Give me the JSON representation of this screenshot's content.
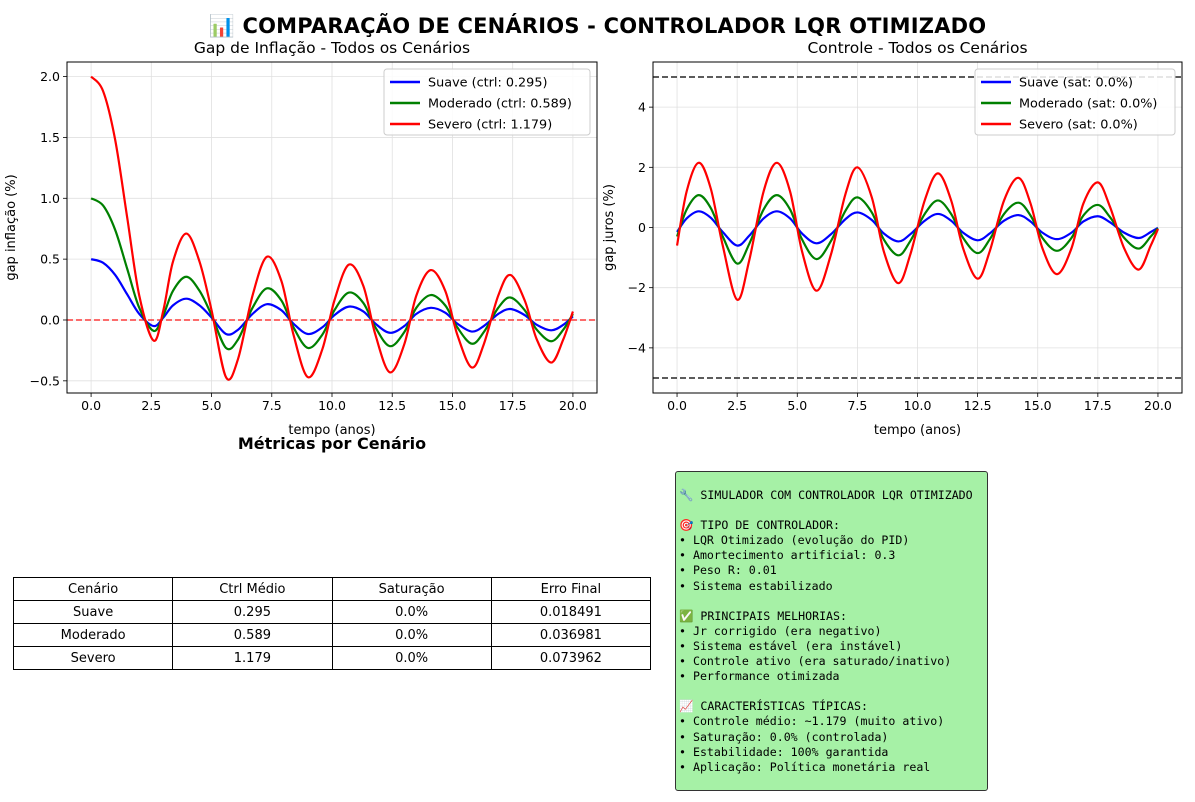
{
  "suptitle": "📊 COMPARAÇÃO DE CENÁRIOS - CONTROLADOR LQR OTIMIZADO",
  "chart_data": [
    {
      "type": "line",
      "title": "Gap de Inflação - Todos os Cenários",
      "xlabel": "tempo (anos)",
      "ylabel": "gap inflação (%)",
      "xlim": [
        -1,
        21
      ],
      "ylim": [
        -0.6,
        2.12
      ],
      "xticks": [
        "0.0",
        "2.5",
        "5.0",
        "7.5",
        "10.0",
        "12.5",
        "15.0",
        "17.5",
        "20.0"
      ],
      "yticks": [
        "−0.5",
        "0.0",
        "0.5",
        "1.0",
        "1.5",
        "2.0"
      ],
      "grid": true,
      "legend_position": "top-right",
      "reference_lines": [
        {
          "y": 0,
          "color": "#ff0000",
          "style": "dashed"
        }
      ],
      "series": [
        {
          "name": "Suave (ctrl: 0.295)",
          "color": "#0000ff",
          "amplitude": 0.5,
          "points": [
            [
              0,
              0.5
            ],
            [
              0.5,
              0.47
            ],
            [
              1,
              0.37
            ],
            [
              1.5,
              0.21
            ],
            [
              2,
              0.05
            ],
            [
              2.6,
              -0.05
            ],
            [
              3,
              0.02
            ],
            [
              3.4,
              0.12
            ],
            [
              3.95,
              0.175
            ],
            [
              4.5,
              0.12
            ],
            [
              5,
              0.02
            ],
            [
              5.6,
              -0.115
            ],
            [
              6.1,
              -0.08
            ],
            [
              6.7,
              0.05
            ],
            [
              7.3,
              0.13
            ],
            [
              7.9,
              0.08
            ],
            [
              8.4,
              -0.03
            ],
            [
              9,
              -0.115
            ],
            [
              9.6,
              -0.06
            ],
            [
              10.1,
              0.04
            ],
            [
              10.7,
              0.11
            ],
            [
              11.3,
              0.07
            ],
            [
              11.8,
              -0.03
            ],
            [
              12.4,
              -0.105
            ],
            [
              13,
              -0.05
            ],
            [
              13.5,
              0.05
            ],
            [
              14.1,
              0.1
            ],
            [
              14.7,
              0.06
            ],
            [
              15.2,
              -0.03
            ],
            [
              15.8,
              -0.095
            ],
            [
              16.3,
              -0.05
            ],
            [
              16.9,
              0.05
            ],
            [
              17.4,
              0.09
            ],
            [
              18,
              0.04
            ],
            [
              18.5,
              -0.04
            ],
            [
              19.1,
              -0.085
            ],
            [
              19.6,
              -0.04
            ],
            [
              20,
              0.03
            ]
          ]
        },
        {
          "name": "Moderado (ctrl: 0.589)",
          "color": "#008000",
          "amplitude": 1.0,
          "points": [
            [
              0,
              1.0
            ],
            [
              0.5,
              0.94
            ],
            [
              1,
              0.74
            ],
            [
              1.5,
              0.42
            ],
            [
              2,
              0.1
            ],
            [
              2.6,
              -0.09
            ],
            [
              3,
              0.04
            ],
            [
              3.4,
              0.24
            ],
            [
              3.95,
              0.355
            ],
            [
              4.5,
              0.24
            ],
            [
              5,
              0.04
            ],
            [
              5.6,
              -0.23
            ],
            [
              6.1,
              -0.16
            ],
            [
              6.7,
              0.1
            ],
            [
              7.3,
              0.26
            ],
            [
              7.9,
              0.16
            ],
            [
              8.4,
              -0.06
            ],
            [
              9,
              -0.23
            ],
            [
              9.6,
              -0.12
            ],
            [
              10.1,
              0.08
            ],
            [
              10.7,
              0.225
            ],
            [
              11.3,
              0.14
            ],
            [
              11.8,
              -0.06
            ],
            [
              12.4,
              -0.215
            ],
            [
              13,
              -0.1
            ],
            [
              13.5,
              0.1
            ],
            [
              14.1,
              0.205
            ],
            [
              14.7,
              0.12
            ],
            [
              15.2,
              -0.06
            ],
            [
              15.8,
              -0.195
            ],
            [
              16.3,
              -0.1
            ],
            [
              16.9,
              0.1
            ],
            [
              17.4,
              0.185
            ],
            [
              18,
              0.08
            ],
            [
              18.5,
              -0.08
            ],
            [
              19.1,
              -0.175
            ],
            [
              19.6,
              -0.08
            ],
            [
              20,
              0.05
            ]
          ]
        },
        {
          "name": "Severo (ctrl: 1.179)",
          "color": "#ff0000",
          "amplitude": 2.0,
          "points": [
            [
              0,
              2.0
            ],
            [
              0.5,
              1.88
            ],
            [
              1,
              1.48
            ],
            [
              1.5,
              0.84
            ],
            [
              2,
              0.2
            ],
            [
              2.6,
              -0.17
            ],
            [
              3,
              0.08
            ],
            [
              3.4,
              0.48
            ],
            [
              3.95,
              0.71
            ],
            [
              4.5,
              0.48
            ],
            [
              5,
              0.08
            ],
            [
              5.6,
              -0.47
            ],
            [
              6.1,
              -0.32
            ],
            [
              6.7,
              0.2
            ],
            [
              7.3,
              0.52
            ],
            [
              7.9,
              0.32
            ],
            [
              8.4,
              -0.12
            ],
            [
              9,
              -0.47
            ],
            [
              9.6,
              -0.24
            ],
            [
              10.1,
              0.16
            ],
            [
              10.7,
              0.455
            ],
            [
              11.3,
              0.28
            ],
            [
              11.8,
              -0.12
            ],
            [
              12.4,
              -0.43
            ],
            [
              13,
              -0.2
            ],
            [
              13.5,
              0.2
            ],
            [
              14.1,
              0.41
            ],
            [
              14.7,
              0.24
            ],
            [
              15.2,
              -0.12
            ],
            [
              15.8,
              -0.39
            ],
            [
              16.3,
              -0.2
            ],
            [
              16.9,
              0.2
            ],
            [
              17.4,
              0.37
            ],
            [
              18,
              0.16
            ],
            [
              18.5,
              -0.16
            ],
            [
              19.1,
              -0.35
            ],
            [
              19.6,
              -0.16
            ],
            [
              20,
              0.07
            ]
          ]
        }
      ]
    },
    {
      "type": "line",
      "title": "Controle - Todos os Cenários",
      "xlabel": "tempo (anos)",
      "ylabel": "gap juros (%)",
      "xlim": [
        -1,
        21
      ],
      "ylim": [
        -5.5,
        5.5
      ],
      "xticks": [
        "0.0",
        "2.5",
        "5.0",
        "7.5",
        "10.0",
        "12.5",
        "15.0",
        "17.5",
        "20.0"
      ],
      "yticks": [
        "−4",
        "−2",
        "0",
        "2",
        "4"
      ],
      "grid": true,
      "legend_position": "top-right",
      "reference_lines": [
        {
          "y": 5,
          "color": "#000000",
          "style": "dashed"
        },
        {
          "y": -5,
          "color": "#000000",
          "style": "dashed"
        }
      ],
      "series": [
        {
          "name": "Suave (sat: 0.0%)",
          "color": "#0000ff",
          "scale": 0.25
        },
        {
          "name": "Moderado (sat: 0.0%)",
          "color": "#008000",
          "scale": 0.5
        },
        {
          "name": "Severo (sat: 0.0%)",
          "color": "#ff0000",
          "scale": 1.0,
          "points": [
            [
              0,
              -0.6
            ],
            [
              0.4,
              1.2
            ],
            [
              0.9,
              2.15
            ],
            [
              1.4,
              1.3
            ],
            [
              1.9,
              -0.6
            ],
            [
              2.5,
              -2.4
            ],
            [
              3,
              -1.1
            ],
            [
              3.6,
              1.2
            ],
            [
              4.15,
              2.15
            ],
            [
              4.7,
              1.2
            ],
            [
              5.2,
              -0.8
            ],
            [
              5.8,
              -2.1
            ],
            [
              6.4,
              -0.9
            ],
            [
              7,
              1.1
            ],
            [
              7.5,
              2.0
            ],
            [
              8.1,
              1.0
            ],
            [
              8.6,
              -0.8
            ],
            [
              9.2,
              -1.85
            ],
            [
              9.7,
              -0.9
            ],
            [
              10.3,
              0.9
            ],
            [
              10.85,
              1.8
            ],
            [
              11.4,
              0.9
            ],
            [
              11.9,
              -0.7
            ],
            [
              12.5,
              -1.7
            ],
            [
              13,
              -0.8
            ],
            [
              13.6,
              0.9
            ],
            [
              14.2,
              1.65
            ],
            [
              14.7,
              0.8
            ],
            [
              15.2,
              -0.7
            ],
            [
              15.8,
              -1.55
            ],
            [
              16.4,
              -0.7
            ],
            [
              16.9,
              0.8
            ],
            [
              17.5,
              1.5
            ],
            [
              18,
              0.7
            ],
            [
              18.6,
              -0.7
            ],
            [
              19.2,
              -1.4
            ],
            [
              19.7,
              -0.6
            ],
            [
              20,
              -0.05
            ]
          ]
        }
      ]
    }
  ],
  "metrics": {
    "title": "Métricas por Cenário",
    "headers": [
      "Cenário",
      "Ctrl Médio",
      "Saturação",
      "Erro Final"
    ],
    "rows": [
      [
        "Suave",
        "0.295",
        "0.0%",
        "0.018491"
      ],
      [
        "Moderado",
        "0.589",
        "0.0%",
        "0.036981"
      ],
      [
        "Severo",
        "1.179",
        "0.0%",
        "0.073962"
      ]
    ]
  },
  "info_box": {
    "background": "#a6f1a6",
    "lines": [
      "🔧 SIMULADOR COM CONTROLADOR LQR OTIMIZADO",
      "",
      "🎯 TIPO DE CONTROLADOR:",
      "• LQR Otimizado (evolução do PID)",
      "• Amortecimento artificial: 0.3",
      "• Peso R: 0.01",
      "• Sistema estabilizado",
      "",
      "✅ PRINCIPAIS MELHORIAS:",
      "• Jr corrigido (era negativo)",
      "• Sistema estável (era instável)",
      "• Controle ativo (era saturado/inativo)",
      "• Performance otimizada",
      "",
      "📈 CARACTERÍSTICAS TÍPICAS:",
      "• Controle médio: ~1.179 (muito ativo)",
      "• Saturação: 0.0% (controlada)",
      "• Estabilidade: 100% garantida",
      "• Aplicação: Política monetária real"
    ]
  }
}
